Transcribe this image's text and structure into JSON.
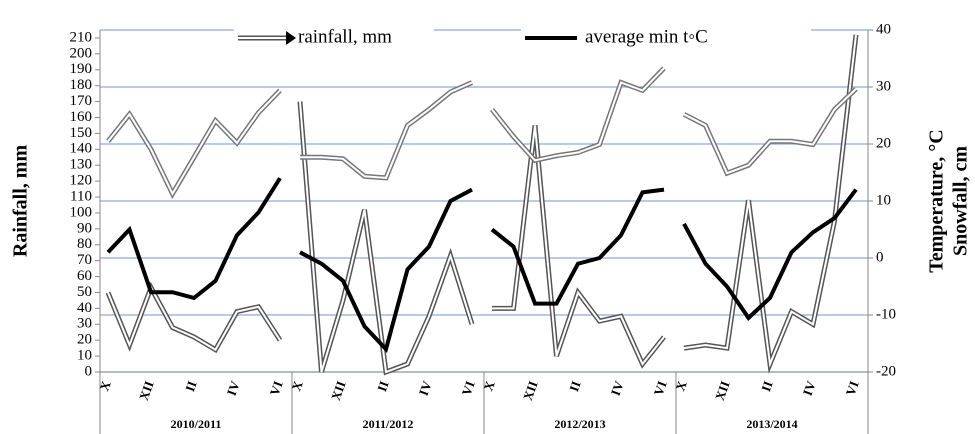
{
  "chart_data": {
    "type": "line",
    "legend_labels": [
      "rainfall, mm",
      "average min t◦C"
    ],
    "y_label": "Rainfall, mm",
    "y2_label": [
      "Temperature, °C",
      "Snowfall, cm"
    ],
    "categories": [
      "X",
      null,
      "XII",
      null,
      "II",
      null,
      "IV",
      null,
      "VI",
      "X",
      null,
      "XII",
      null,
      "II",
      null,
      "IV",
      null,
      "VI",
      "X",
      null,
      "XII",
      null,
      "II",
      null,
      "IV",
      null,
      "VI",
      "X",
      null,
      "XII",
      null,
      "II",
      null,
      "IV",
      null,
      "VI"
    ],
    "groups": [
      "2010/2011",
      "2011/2012",
      "2012/2013",
      "2013/2014"
    ],
    "ylim": [
      0,
      215
    ],
    "yticks": [
      0,
      10,
      20,
      30,
      40,
      50,
      60,
      70,
      80,
      90,
      100,
      110,
      120,
      130,
      140,
      150,
      160,
      170,
      180,
      190,
      200,
      210
    ],
    "y2lim": [
      -20,
      40
    ],
    "y2ticks": [
      -20,
      -10,
      0,
      10,
      20,
      30,
      40
    ],
    "grid": true,
    "series": [
      {
        "name": "rainfall, mm",
        "color": "#555555",
        "style": "double",
        "values": [
          50,
          17,
          53,
          28,
          22,
          14,
          38,
          41,
          20,
          170,
          0,
          45,
          102,
          0,
          5,
          35,
          73,
          30,
          40,
          40,
          155,
          10,
          50,
          32,
          35,
          5,
          22,
          15,
          17,
          15,
          108,
          5,
          38,
          30,
          95,
          212
        ]
      },
      {
        "name": "average min t◦C",
        "color": "#000000",
        "style": "thick",
        "axis": "y2",
        "values": [
          1,
          5,
          -6,
          -6,
          -7,
          -4,
          4,
          8,
          14,
          1,
          -1,
          -4,
          -12,
          -16,
          -2,
          2,
          10,
          12,
          5,
          2,
          -8,
          -8,
          -1,
          0,
          4,
          11.5,
          12,
          6,
          -1,
          -5,
          -10.5,
          -7,
          1,
          4.5,
          7,
          12
        ]
      },
      {
        "color": "#777777",
        "style": "double",
        "values": [
          145,
          162,
          140,
          112,
          135,
          158,
          144,
          163,
          177,
          135,
          135,
          134,
          123,
          122,
          155,
          165,
          176,
          182,
          165,
          148,
          133,
          136,
          138,
          143,
          182,
          177,
          191,
          162,
          155,
          125,
          130,
          145,
          145,
          143,
          165,
          178
        ]
      }
    ]
  }
}
